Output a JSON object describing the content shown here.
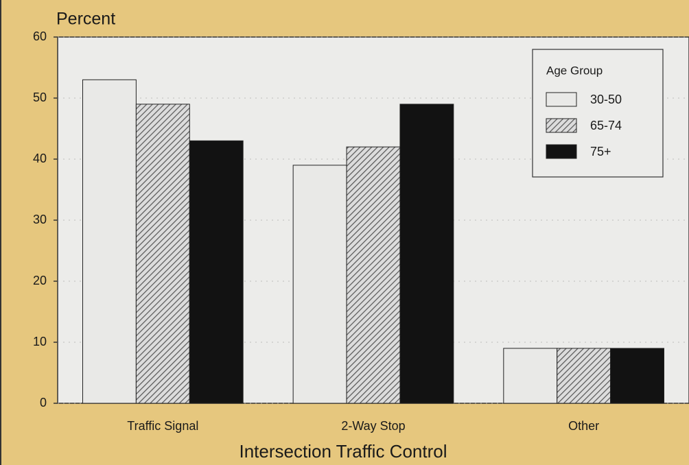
{
  "chart_data": {
    "type": "bar",
    "y_label": "Percent",
    "x_label": "Intersection Traffic Control",
    "categories": [
      "Traffic Signal",
      "2-Way Stop",
      "Other"
    ],
    "series": [
      {
        "name": "30-50",
        "color": "#e9e9e7",
        "values": [
          53,
          39,
          9
        ]
      },
      {
        "name": "65-74",
        "color": "#555555",
        "hatch": true,
        "values": [
          49,
          42,
          9
        ]
      },
      {
        "name": "75+",
        "color": "#121212",
        "values": [
          43,
          49,
          9
        ]
      }
    ],
    "legend_title": "Age Group",
    "legend": "upper right",
    "ylim": [
      0,
      60
    ],
    "yticks": [
      0,
      10,
      20,
      30,
      40,
      50,
      60
    ],
    "grid": true
  }
}
